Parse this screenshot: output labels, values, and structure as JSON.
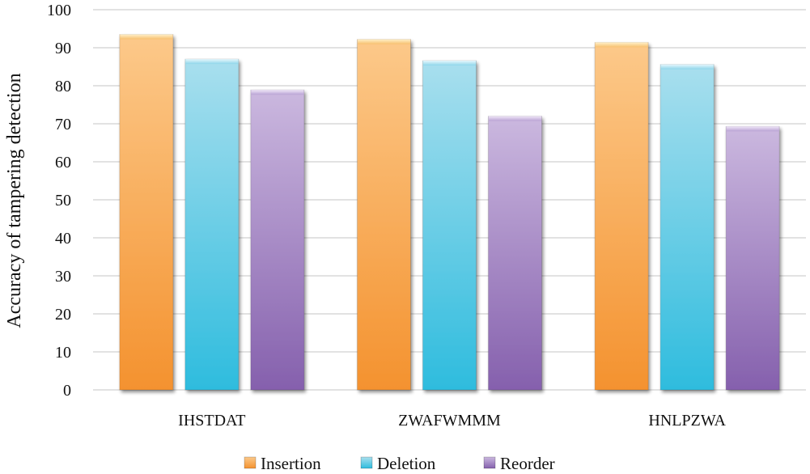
{
  "chart_data": {
    "type": "bar",
    "title": "",
    "xlabel": "",
    "ylabel": "Accuracy of tampering detection",
    "ylim": [
      0,
      100
    ],
    "yticks": [
      0,
      10,
      20,
      30,
      40,
      50,
      60,
      70,
      80,
      90,
      100
    ],
    "grid": true,
    "legend_position": "bottom",
    "categories": [
      "IHSTDAT",
      "ZWAFWMMM",
      "HNLPZWA"
    ],
    "series": [
      {
        "name": "Insertion",
        "values": [
          93.5,
          92.2,
          91.4
        ],
        "color": "#f5a04a"
      },
      {
        "name": "Deletion",
        "values": [
          87.0,
          86.6,
          85.6
        ],
        "color": "#4cc3de"
      },
      {
        "name": "Reorder",
        "values": [
          78.9,
          72.0,
          69.3
        ],
        "color": "#9c7cc0"
      }
    ]
  }
}
